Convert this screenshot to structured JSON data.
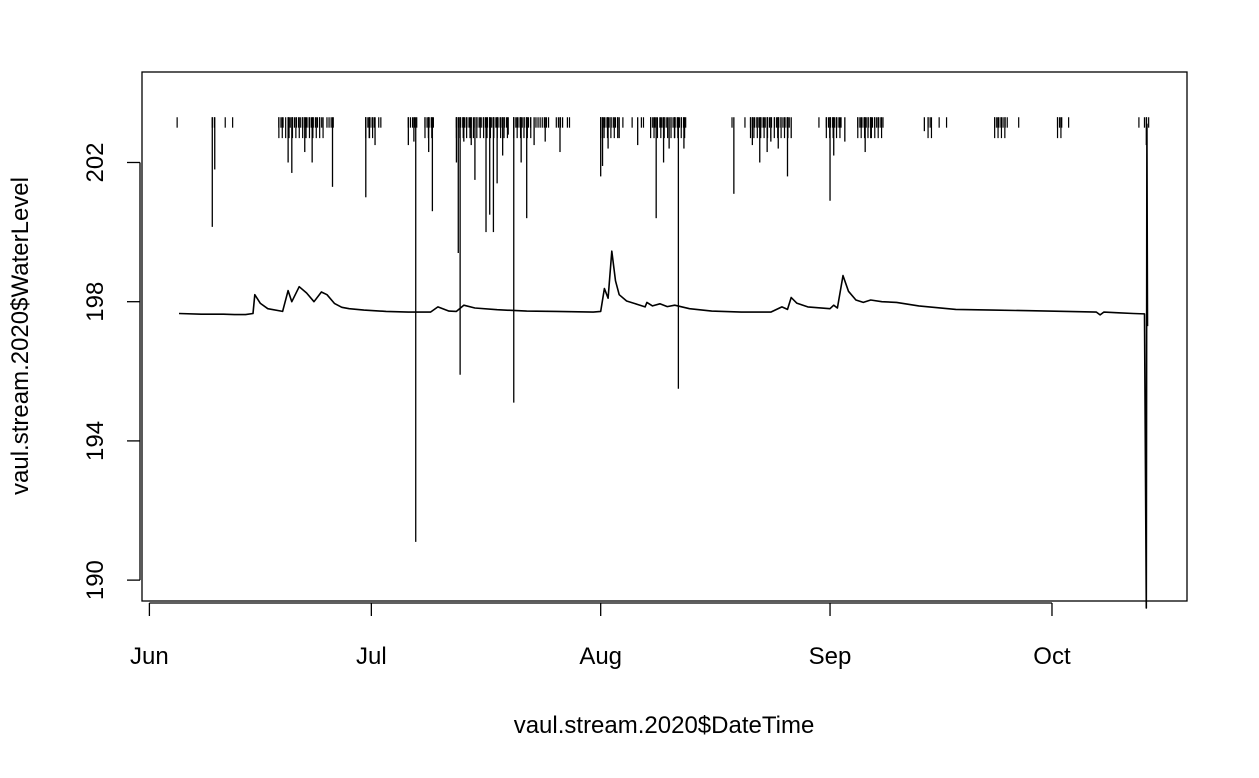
{
  "chart_data": {
    "type": "line",
    "title": "",
    "xlabel": "vaul.stream.2020$DateTime",
    "ylabel": "vaul.stream.2020$WaterLevel",
    "x_ticks": [
      {
        "date": "2020-06-01",
        "label": "Jun"
      },
      {
        "date": "2020-07-01",
        "label": "Jul"
      },
      {
        "date": "2020-08-01",
        "label": "Aug"
      },
      {
        "date": "2020-09-01",
        "label": "Sep"
      },
      {
        "date": "2020-10-01",
        "label": "Oct"
      }
    ],
    "y_ticks": [
      190,
      194,
      198,
      202
    ],
    "xlim": [
      "2020-05-31T00:00",
      "2020-10-19T06:00"
    ],
    "ylim": [
      189.4,
      204.6
    ],
    "grid": false,
    "legend": "none",
    "line_color": "#000000",
    "series": [
      {
        "points": [
          [
            "2020-06-05T00:00",
            197.66
          ],
          [
            "2020-06-08T00:00",
            197.64
          ],
          [
            "2020-06-11T00:00",
            197.64
          ],
          [
            "2020-06-12T12:00",
            197.63
          ],
          [
            "2020-06-14T00:00",
            197.63
          ],
          [
            "2020-06-15T00:00",
            197.66
          ],
          [
            "2020-06-15T06:00",
            198.2
          ],
          [
            "2020-06-16T00:00",
            197.95
          ],
          [
            "2020-06-17T00:00",
            197.8
          ],
          [
            "2020-06-19T00:00",
            197.72
          ],
          [
            "2020-06-19T18:00",
            198.32
          ],
          [
            "2020-06-20T06:00",
            198.0
          ],
          [
            "2020-06-21T06:00",
            198.43
          ],
          [
            "2020-06-22T06:00",
            198.25
          ],
          [
            "2020-06-23T06:00",
            198.0
          ],
          [
            "2020-06-24T06:00",
            198.28
          ],
          [
            "2020-06-25T00:00",
            198.2
          ],
          [
            "2020-06-26T00:00",
            197.95
          ],
          [
            "2020-06-27T00:00",
            197.84
          ],
          [
            "2020-06-28T00:00",
            197.8
          ],
          [
            "2020-06-30T00:00",
            197.76
          ],
          [
            "2020-07-03T00:00",
            197.72
          ],
          [
            "2020-07-06T00:00",
            197.7
          ],
          [
            "2020-07-09T00:00",
            197.7
          ],
          [
            "2020-07-10T00:00",
            197.85
          ],
          [
            "2020-07-11T12:00",
            197.73
          ],
          [
            "2020-07-12T12:00",
            197.72
          ],
          [
            "2020-07-13T12:00",
            197.9
          ],
          [
            "2020-07-15T00:00",
            197.82
          ],
          [
            "2020-07-18T00:00",
            197.77
          ],
          [
            "2020-07-22T00:00",
            197.73
          ],
          [
            "2020-07-26T00:00",
            197.72
          ],
          [
            "2020-07-31T00:00",
            197.7
          ],
          [
            "2020-08-01T00:00",
            197.72
          ],
          [
            "2020-08-01T12:00",
            198.38
          ],
          [
            "2020-08-02T00:00",
            198.1
          ],
          [
            "2020-08-02T12:00",
            199.45
          ],
          [
            "2020-08-03T00:00",
            198.6
          ],
          [
            "2020-08-03T12:00",
            198.2
          ],
          [
            "2020-08-04T12:00",
            198.02
          ],
          [
            "2020-08-06T00:00",
            197.92
          ],
          [
            "2020-08-07T00:00",
            197.85
          ],
          [
            "2020-08-07T06:00",
            197.98
          ],
          [
            "2020-08-08T00:00",
            197.88
          ],
          [
            "2020-08-09T00:00",
            197.94
          ],
          [
            "2020-08-10T00:00",
            197.86
          ],
          [
            "2020-08-11T00:00",
            197.9
          ],
          [
            "2020-08-13T00:00",
            197.8
          ],
          [
            "2020-08-16T00:00",
            197.73
          ],
          [
            "2020-08-20T00:00",
            197.7
          ],
          [
            "2020-08-24T00:00",
            197.7
          ],
          [
            "2020-08-25T12:00",
            197.85
          ],
          [
            "2020-08-26T06:00",
            197.78
          ],
          [
            "2020-08-26T18:00",
            198.12
          ],
          [
            "2020-08-27T12:00",
            197.96
          ],
          [
            "2020-08-29T00:00",
            197.85
          ],
          [
            "2020-09-01T00:00",
            197.8
          ],
          [
            "2020-09-01T12:00",
            197.9
          ],
          [
            "2020-09-02T00:00",
            197.82
          ],
          [
            "2020-09-02T18:00",
            198.75
          ],
          [
            "2020-09-03T12:00",
            198.3
          ],
          [
            "2020-09-04T12:00",
            198.05
          ],
          [
            "2020-09-05T12:00",
            197.98
          ],
          [
            "2020-09-06T12:00",
            198.05
          ],
          [
            "2020-09-08T00:00",
            198.0
          ],
          [
            "2020-09-10T00:00",
            197.98
          ],
          [
            "2020-09-13T00:00",
            197.88
          ],
          [
            "2020-09-18T00:00",
            197.78
          ],
          [
            "2020-09-23T00:00",
            197.76
          ],
          [
            "2020-09-28T00:00",
            197.74
          ],
          [
            "2020-10-03T00:00",
            197.72
          ],
          [
            "2020-10-07T00:00",
            197.7
          ],
          [
            "2020-10-07T12:00",
            197.62
          ],
          [
            "2020-10-08T00:00",
            197.7
          ],
          [
            "2020-10-10T00:00",
            197.68
          ],
          [
            "2020-10-12T00:00",
            197.66
          ],
          [
            "2020-10-13T12:00",
            197.65
          ],
          [
            "2020-10-13T18:00",
            189.2
          ],
          [
            "2020-10-13T20:00",
            203.1
          ],
          [
            "2020-10-13T22:00",
            197.3
          ]
        ],
        "dropouts": [
          [
            "2020-06-09T12:00",
            200.15
          ],
          [
            "2020-06-09T20:00",
            201.8
          ],
          [
            "2020-06-19T18:00",
            202.0
          ],
          [
            "2020-06-20T06:00",
            201.7
          ],
          [
            "2020-06-22T00:00",
            202.3
          ],
          [
            "2020-06-23T00:00",
            202.0
          ],
          [
            "2020-06-25T18:00",
            201.3
          ],
          [
            "2020-06-30T06:00",
            201.0
          ],
          [
            "2020-06-30T18:00",
            202.7
          ],
          [
            "2020-07-01T12:00",
            202.5
          ],
          [
            "2020-07-06T00:00",
            202.5
          ],
          [
            "2020-07-06T18:00",
            202.6
          ],
          [
            "2020-07-07T00:00",
            191.1
          ],
          [
            "2020-07-08T18:00",
            202.3
          ],
          [
            "2020-07-09T06:00",
            200.6
          ],
          [
            "2020-07-12T12:00",
            202.0
          ],
          [
            "2020-07-12T18:00",
            199.4
          ],
          [
            "2020-07-13T00:00",
            195.9
          ],
          [
            "2020-07-13T12:00",
            202.6
          ],
          [
            "2020-07-14T12:00",
            202.5
          ],
          [
            "2020-07-15T00:00",
            201.5
          ],
          [
            "2020-07-16T12:00",
            200.0
          ],
          [
            "2020-07-17T00:00",
            200.5
          ],
          [
            "2020-07-17T12:00",
            200.0
          ],
          [
            "2020-07-18T00:00",
            201.4
          ],
          [
            "2020-07-18T18:00",
            202.2
          ],
          [
            "2020-07-19T12:00",
            202.8
          ],
          [
            "2020-07-20T06:00",
            195.1
          ],
          [
            "2020-07-21T06:00",
            202.0
          ],
          [
            "2020-07-22T00:00",
            200.4
          ],
          [
            "2020-07-23T00:00",
            202.5
          ],
          [
            "2020-07-24T12:00",
            202.6
          ],
          [
            "2020-07-26T12:00",
            202.3
          ],
          [
            "2020-08-01T00:00",
            201.6
          ],
          [
            "2020-08-01T06:00",
            201.9
          ],
          [
            "2020-08-02T00:00",
            202.4
          ],
          [
            "2020-08-03T12:00",
            202.7
          ],
          [
            "2020-08-06T00:00",
            202.5
          ],
          [
            "2020-08-08T12:00",
            200.4
          ],
          [
            "2020-08-09T12:00",
            202.0
          ],
          [
            "2020-08-10T06:00",
            202.4
          ],
          [
            "2020-08-11T00:00",
            202.7
          ],
          [
            "2020-08-11T12:00",
            195.5
          ],
          [
            "2020-08-12T06:00",
            202.4
          ],
          [
            "2020-08-19T00:00",
            201.1
          ],
          [
            "2020-08-21T12:00",
            202.5
          ],
          [
            "2020-08-22T12:00",
            202.0
          ],
          [
            "2020-08-23T12:00",
            202.3
          ],
          [
            "2020-08-24T00:00",
            202.6
          ],
          [
            "2020-08-25T00:00",
            202.4
          ],
          [
            "2020-08-26T06:00",
            201.6
          ],
          [
            "2020-08-26T18:00",
            202.7
          ],
          [
            "2020-09-01T00:00",
            200.9
          ],
          [
            "2020-09-01T12:00",
            202.2
          ],
          [
            "2020-09-03T00:00",
            202.6
          ],
          [
            "2020-09-05T18:00",
            202.3
          ],
          [
            "2020-09-06T12:00",
            202.7
          ],
          [
            "2020-09-13T18:00",
            202.9
          ],
          [
            "2020-10-13T18:00",
            202.5
          ]
        ],
        "flag_rows": [
          [
            [
              "2020-06-04T18:00",
              "2020-06-05T00:00"
            ],
            [
              "2020-06-09T12:00",
              "2020-06-10T00:00"
            ],
            [
              "2020-06-11T06:00",
              "2020-06-11T12:00"
            ],
            [
              "2020-06-12T06:00",
              "2020-06-12T12:00"
            ],
            [
              "2020-06-18T12:00",
              "2020-06-19T06:00"
            ],
            [
              "2020-06-19T18:00",
              "2020-06-24T12:00"
            ],
            [
              "2020-06-25T00:00",
              "2020-06-26T00:00"
            ],
            [
              "2020-06-30T06:00",
              "2020-07-01T12:00"
            ],
            [
              "2020-07-02T00:00",
              "2020-07-02T12:00"
            ],
            [
              "2020-07-06T00:00",
              "2020-07-07T06:00"
            ],
            [
              "2020-07-08T06:00",
              "2020-07-09T12:00"
            ],
            [
              "2020-07-12T12:00",
              "2020-07-14T12:00"
            ],
            [
              "2020-07-15T00:00",
              "2020-07-19T12:00"
            ],
            [
              "2020-07-20T06:00",
              "2020-07-22T18:00"
            ],
            [
              "2020-07-23T06:00",
              "2020-07-25T00:00"
            ],
            [
              "2020-07-26T00:00",
              "2020-07-27T00:00"
            ],
            [
              "2020-07-27T12:00",
              "2020-07-28T00:00"
            ],
            [
              "2020-08-01T00:00",
              "2020-08-03T12:00"
            ],
            [
              "2020-08-04T00:00",
              "2020-08-04T06:00"
            ],
            [
              "2020-08-05T06:00",
              "2020-08-05T12:00"
            ],
            [
              "2020-08-06T12:00",
              "2020-08-07T00:00"
            ],
            [
              "2020-08-07T18:00",
              "2020-08-08T12:00"
            ],
            [
              "2020-08-09T00:00",
              "2020-08-10T00:00"
            ],
            [
              "2020-08-10T12:00",
              "2020-08-12T12:00"
            ],
            [
              "2020-08-18T18:00",
              "2020-08-19T00:00"
            ],
            [
              "2020-08-20T12:00",
              "2020-08-20T18:00"
            ],
            [
              "2020-08-21T06:00",
              "2020-08-24T06:00"
            ],
            [
              "2020-08-24T12:00",
              "2020-08-26T18:00"
            ],
            [
              "2020-08-30T12:00",
              "2020-08-30T18:00"
            ],
            [
              "2020-08-31T12:00",
              "2020-09-02T18:00"
            ],
            [
              "2020-09-04T18:00",
              "2020-09-08T06:00"
            ],
            [
              "2020-09-14T06:00",
              "2020-09-14T18:00"
            ],
            [
              "2020-09-15T18:00",
              "2020-09-16T00:00"
            ],
            [
              "2020-09-16T18:00",
              "2020-09-17T00:00"
            ],
            [
              "2020-09-23T06:00",
              "2020-09-25T00:00"
            ],
            [
              "2020-09-26T12:00",
              "2020-09-26T18:00"
            ],
            [
              "2020-10-01T18:00",
              "2020-10-02T12:00"
            ],
            [
              "2020-10-03T06:00",
              "2020-10-03T12:00"
            ],
            [
              "2020-10-12T18:00",
              "2020-10-13T00:00"
            ],
            [
              "2020-10-13T12:00",
              "2020-10-14T06:00"
            ]
          ],
          [
            [
              "2020-06-18T12:00",
              "2020-06-24T12:00"
            ],
            [
              "2020-06-30T06:00",
              "2020-07-01T12:00"
            ],
            [
              "2020-07-08T06:00",
              "2020-07-09T12:00"
            ],
            [
              "2020-07-12T12:00",
              "2020-07-19T12:00"
            ],
            [
              "2020-07-20T06:00",
              "2020-07-22T18:00"
            ],
            [
              "2020-08-01T00:00",
              "2020-08-03T12:00"
            ],
            [
              "2020-08-07T18:00",
              "2020-08-12T12:00"
            ],
            [
              "2020-08-21T06:00",
              "2020-08-26T18:00"
            ],
            [
              "2020-08-31T12:00",
              "2020-09-02T18:00"
            ],
            [
              "2020-09-04T18:00",
              "2020-09-08T06:00"
            ],
            [
              "2020-09-14T06:00",
              "2020-09-14T18:00"
            ],
            [
              "2020-09-23T06:00",
              "2020-09-25T00:00"
            ],
            [
              "2020-10-01T18:00",
              "2020-10-02T12:00"
            ]
          ]
        ]
      }
    ]
  }
}
